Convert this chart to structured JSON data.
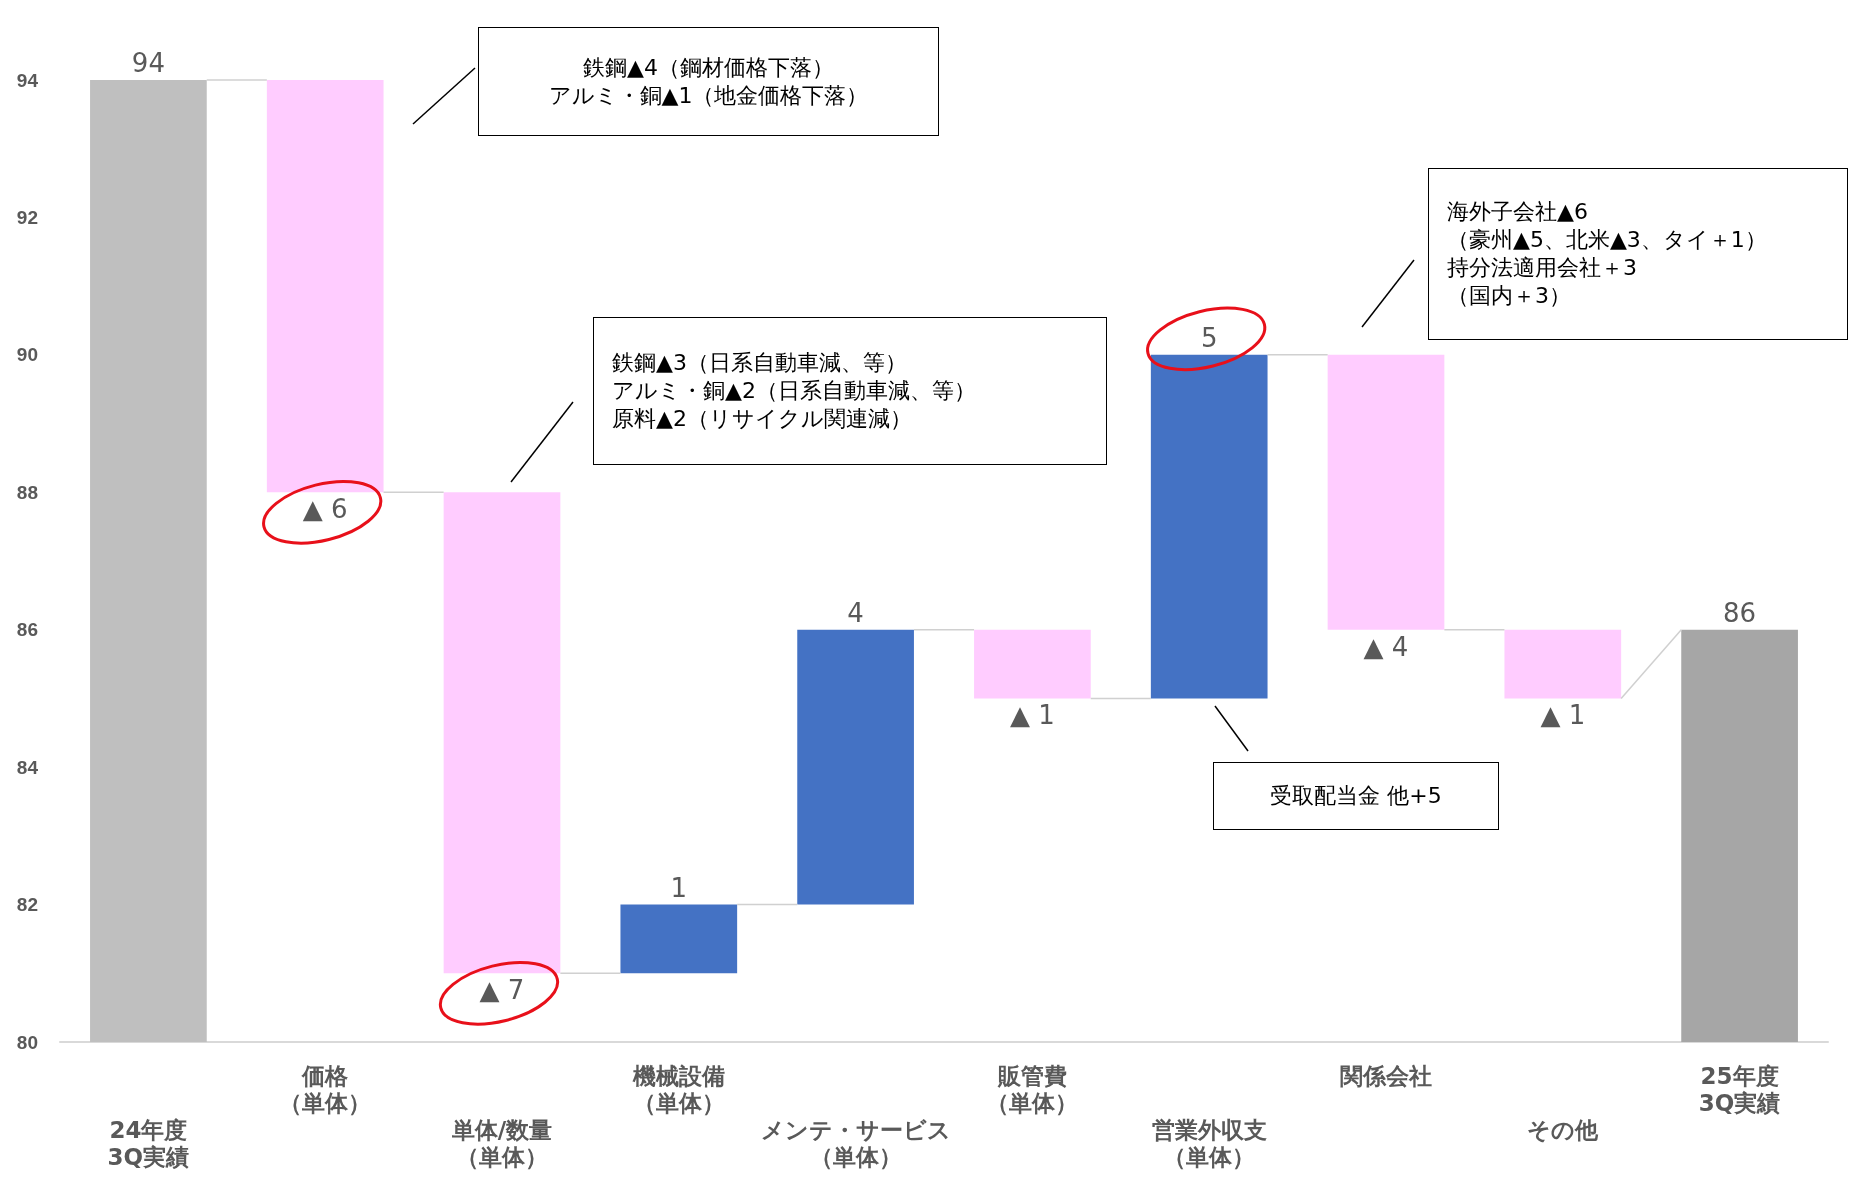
{
  "chart_data": {
    "type": "bar",
    "categories": [
      "24年度3Q実績",
      "価格（単体）",
      "単体/数量（単体）",
      "機械設備（単体）",
      "メンテ・サービス（単体）",
      "販管費（単体）",
      "営業外収支（単体）",
      "関係会社",
      "その他",
      "25年度3Q実績"
    ],
    "values": [
      94,
      -6,
      -7,
      1,
      4,
      -1,
      5,
      -4,
      -1,
      86
    ],
    "base": [
      null,
      94,
      88,
      81,
      82,
      86,
      85,
      90,
      86,
      null
    ],
    "colors": [
      "#bfbfbf",
      "#ffccff",
      "#ffccff",
      "#4472c4",
      "#4472c4",
      "#ffccff",
      "#4472c4",
      "#ffccff",
      "#ffccff",
      "#a6a6a6"
    ],
    "value_labels": [
      "94",
      "▲ 6",
      "▲ 7",
      "1",
      "4",
      "▲ 1",
      "5",
      "▲ 4",
      "▲ 1",
      "86"
    ],
    "ylim": [
      80,
      94
    ],
    "yticks": [
      80,
      82,
      84,
      86,
      88,
      90,
      92,
      94
    ],
    "grid": false,
    "annotations": [
      "鉄鋼▲4（鋼材価格下落）アルミ・銅▲1（地金価格下落）",
      "鉄鋼▲3（日系自動車減、等）アルミ・銅▲2（日系自動車減、等）原料▲2（リサイクル関連減）",
      "海外子会社▲6（豪州▲5、北米▲3、タイ＋1）持分法適用会社＋3（国内＋3）",
      "受取配当金 他+5"
    ]
  }
}
